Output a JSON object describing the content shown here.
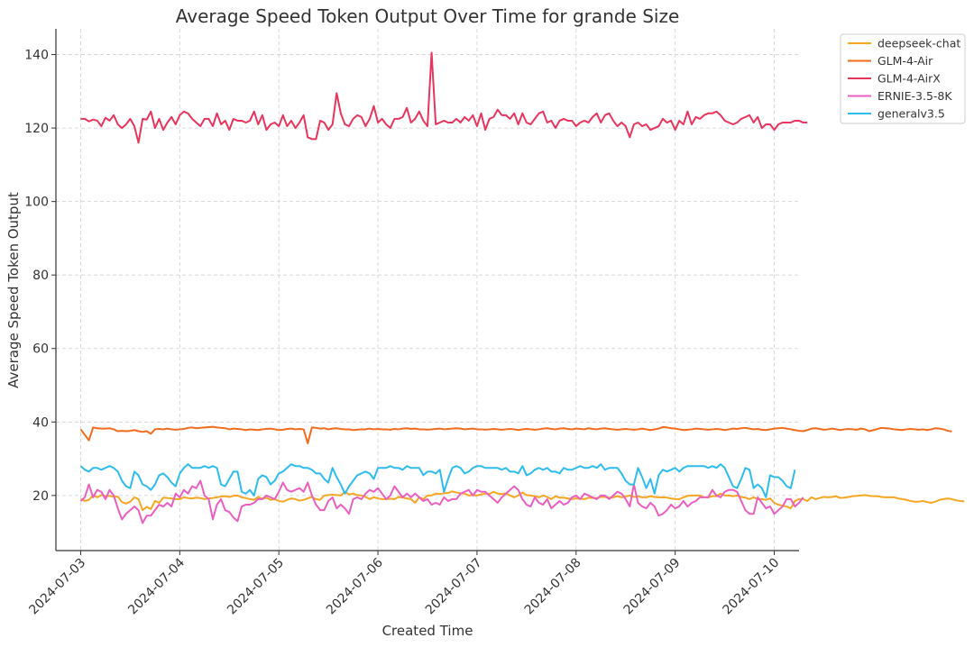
{
  "chart_data": {
    "type": "line",
    "title": "Average Speed Token Output Over Time for grande Size",
    "xlabel": "Created Time",
    "ylabel": "Average Speed Token Output",
    "xlim": [
      "2024-07-02T18:00",
      "2024-07-10T06:00"
    ],
    "ylim": [
      5,
      147
    ],
    "x_ticks": [
      "2024-07-03",
      "2024-07-04",
      "2024-07-05",
      "2024-07-06",
      "2024-07-07",
      "2024-07-08",
      "2024-07-09",
      "2024-07-10"
    ],
    "y_ticks": [
      20,
      40,
      60,
      80,
      100,
      120,
      140
    ],
    "grid": true,
    "legend_position": "outside top-right",
    "start_time": "2024-07-03T00:00",
    "step_hours": 1,
    "series": [
      {
        "name": "deepseek-chat",
        "color": "#f5a623",
        "values": [
          19.0,
          18.5,
          18.8,
          20.0,
          19.5,
          20.1,
          19.8,
          19.9,
          19.6,
          19.7,
          18.2,
          17.8,
          18.3,
          19.5,
          19.0,
          16.0,
          16.9,
          16.3,
          18.5,
          18.0,
          19.4,
          19.3,
          19.2,
          19.0,
          19.0,
          19.5,
          19.3,
          19.2,
          19.4,
          19.3,
          19.0,
          19.2,
          19.3,
          19.5,
          19.7,
          19.8,
          19.6,
          19.9,
          20.0,
          19.5,
          19.3,
          19.0,
          18.8,
          19.6,
          19.1,
          19.4,
          18.8,
          19.0,
          18.5,
          18.3,
          18.8,
          19.2,
          19.0,
          18.6,
          18.8,
          19.2,
          19.6,
          19.0,
          18.8,
          20.0,
          20.1,
          20.2,
          20.1,
          20.0,
          21.0,
          20.3,
          20.5,
          20.1,
          20.0,
          19.6,
          19.0,
          19.5,
          19.2,
          19.0,
          19.0,
          19.1,
          19.0,
          19.6,
          19.4,
          19.2,
          19.0,
          18.0,
          19.5,
          19.0,
          20.0,
          20.0,
          20.5,
          20.4,
          20.6,
          20.7,
          21.1,
          20.8,
          20.6,
          20.5,
          20.0,
          20.1,
          20.0,
          20.3,
          20.5,
          20.4,
          21.0,
          20.5,
          20.4,
          20.6,
          20.0,
          19.5,
          20.0,
          20.8,
          20.1,
          20.0,
          19.8,
          19.5,
          20.0,
          19.6,
          19.0,
          19.8,
          19.4,
          19.4,
          19.2,
          19.0,
          19.2,
          19.1,
          19.0,
          19.4,
          19.3,
          19.3,
          19.6,
          19.6,
          19.4,
          19.5,
          19.8,
          19.5,
          19.7,
          20.0,
          19.6,
          19.8,
          19.5,
          19.5,
          19.8,
          19.6,
          19.5,
          19.5,
          19.4,
          19.2,
          19.0,
          19.0,
          19.5,
          19.9,
          20.0,
          20.0,
          20.0,
          19.5,
          19.5,
          19.8,
          19.8,
          20.5,
          20.0,
          20.0,
          19.8,
          20.0,
          19.6,
          19.4,
          19.0,
          19.5,
          19.0,
          19.0,
          18.8,
          19.2,
          18.0,
          17.5,
          17.2,
          17.0,
          16.5,
          18.5,
          19.0,
          19.0,
          18.5,
          19.5,
          19.0,
          19.3,
          19.6,
          19.5,
          19.6,
          19.8,
          19.3,
          19.4,
          19.6,
          19.8,
          19.9,
          20.0,
          20.1,
          19.9,
          19.8,
          19.8,
          19.6,
          19.5,
          19.5,
          19.5,
          19.2,
          19.0,
          18.8,
          18.5,
          18.3,
          18.3,
          18.5,
          18.2,
          18.0,
          18.3,
          18.8,
          19.0,
          19.2,
          19.0,
          18.7,
          18.5,
          18.4
        ]
      },
      {
        "name": "GLM-4-Air",
        "color": "#f26b1d",
        "values": [
          38.0,
          36.5,
          35.0,
          38.5,
          38.3,
          38.2,
          38.2,
          38.3,
          38.0,
          37.5,
          37.6,
          37.5,
          37.6,
          37.8,
          37.5,
          37.3,
          37.5,
          36.8,
          38.0,
          38.1,
          38.0,
          38.2,
          38.0,
          37.9,
          38.0,
          38.1,
          38.4,
          38.5,
          38.3,
          38.4,
          38.5,
          38.6,
          38.7,
          38.5,
          38.4,
          38.3,
          38.0,
          38.2,
          38.1,
          38.0,
          37.8,
          38.0,
          37.9,
          37.8,
          38.0,
          38.1,
          38.2,
          38.0,
          37.8,
          37.9,
          38.1,
          38.2,
          38.0,
          38.1,
          38.0,
          34.2,
          38.5,
          38.4,
          38.2,
          38.3,
          38.0,
          38.2,
          38.3,
          38.1,
          38.0,
          38.0,
          37.8,
          37.9,
          38.0,
          38.0,
          38.2,
          38.0,
          38.1,
          38.0,
          38.0,
          37.9,
          38.1,
          38.0,
          38.2,
          38.3,
          38.1,
          38.2,
          38.0,
          38.0,
          37.9,
          38.0,
          38.1,
          38.2,
          38.0,
          38.1,
          38.2,
          38.3,
          38.2,
          38.0,
          38.1,
          38.2,
          38.0,
          38.0,
          37.9,
          38.0,
          38.1,
          38.0,
          37.9,
          38.0,
          38.1,
          38.0,
          37.8,
          38.0,
          38.1,
          38.0,
          37.9,
          38.0,
          38.2,
          38.3,
          38.1,
          38.0,
          38.2,
          38.3,
          38.1,
          38.0,
          38.2,
          38.1,
          38.0,
          38.3,
          38.1,
          38.0,
          38.2,
          38.3,
          38.1,
          38.0,
          37.9,
          38.0,
          38.1,
          38.0,
          37.9,
          38.0,
          38.2,
          38.0,
          37.8,
          38.0,
          38.2,
          38.6,
          38.5,
          38.3,
          38.2,
          38.0,
          37.8,
          37.9,
          38.0,
          38.2,
          38.1,
          38.0,
          37.9,
          38.0,
          38.1,
          38.0,
          37.8,
          38.0,
          38.2,
          38.1,
          38.3,
          38.4,
          38.2,
          38.0,
          38.1,
          37.9,
          37.8,
          38.0,
          38.2,
          38.3,
          38.4,
          38.2,
          38.0,
          37.8,
          37.6,
          37.5,
          37.8,
          38.2,
          38.3,
          38.1,
          37.9,
          38.0,
          38.2,
          38.0,
          37.8,
          38.0,
          38.1,
          38.0,
          37.9,
          38.2,
          38.0,
          37.5,
          37.8,
          38.1,
          38.4,
          38.3,
          38.2,
          38.0,
          37.9,
          37.8,
          38.0,
          38.1,
          38.0,
          37.9,
          38.0,
          37.8,
          38.0,
          38.3,
          38.2,
          38.0,
          37.6,
          37.4
        ]
      },
      {
        "name": "GLM-4-AirX",
        "color": "#e8355e",
        "values": [
          122.5,
          122.5,
          121.8,
          122.3,
          122.0,
          120.5,
          122.8,
          122.0,
          123.5,
          121.0,
          120.0,
          121.0,
          122.5,
          120.5,
          116.0,
          122.5,
          122.3,
          124.5,
          120.0,
          122.5,
          119.5,
          121.5,
          123.0,
          121.0,
          123.5,
          124.5,
          124.0,
          122.5,
          121.5,
          120.5,
          122.5,
          122.5,
          120.5,
          124.0,
          121.0,
          122.0,
          119.5,
          122.5,
          122.0,
          122.0,
          121.5,
          122.0,
          124.5,
          121.0,
          123.5,
          119.5,
          121.0,
          121.5,
          120.5,
          123.5,
          120.5,
          122.0,
          120.0,
          121.5,
          123.5,
          117.5,
          117.0,
          117.0,
          122.0,
          121.5,
          119.5,
          121.0,
          129.5,
          124.0,
          121.0,
          120.5,
          122.5,
          123.5,
          123.0,
          120.5,
          122.5,
          126.0,
          121.5,
          122.5,
          121.0,
          120.0,
          122.5,
          122.5,
          123.0,
          125.5,
          121.5,
          122.5,
          124.5,
          122.0,
          120.5,
          140.5,
          121.0,
          121.5,
          122.0,
          121.5,
          121.5,
          122.5,
          121.5,
          123.0,
          122.0,
          123.5,
          120.5,
          124.0,
          119.5,
          122.5,
          123.0,
          125.0,
          123.5,
          123.5,
          122.5,
          124.0,
          121.0,
          124.0,
          121.5,
          121.0,
          122.5,
          124.0,
          124.5,
          121.5,
          122.0,
          120.0,
          122.0,
          122.5,
          122.0,
          122.0,
          120.5,
          121.5,
          122.0,
          121.5,
          123.0,
          124.0,
          121.5,
          123.5,
          124.0,
          122.0,
          120.5,
          121.5,
          120.5,
          117.5,
          121.0,
          121.5,
          120.5,
          121.0,
          119.5,
          120.0,
          120.5,
          122.5,
          121.5,
          122.0,
          119.5,
          122.0,
          121.0,
          124.5,
          121.0,
          123.0,
          122.5,
          123.5,
          124.0,
          124.0,
          124.5,
          123.5,
          122.0,
          121.5,
          121.0,
          121.5,
          122.5,
          123.0,
          123.5,
          121.5,
          123.0,
          120.0,
          121.0,
          121.0,
          119.5,
          121.0,
          121.5,
          121.5,
          121.5,
          122.0,
          122.0,
          121.5,
          121.5
        ]
      },
      {
        "name": "ERNIE-3.5-8K",
        "color": "#ea5fc0",
        "values": [
          18.5,
          19.5,
          23.0,
          19.5,
          21.5,
          21.0,
          19.0,
          21.5,
          20.0,
          16.5,
          13.5,
          15.0,
          16.0,
          17.0,
          16.0,
          12.5,
          14.5,
          14.5,
          16.0,
          17.5,
          17.0,
          18.0,
          17.0,
          20.5,
          19.5,
          21.5,
          20.5,
          22.5,
          22.0,
          24.0,
          20.0,
          19.0,
          13.5,
          17.5,
          19.0,
          16.0,
          15.5,
          14.0,
          13.0,
          17.0,
          17.5,
          17.5,
          18.0,
          19.0,
          19.0,
          20.0,
          19.5,
          19.0,
          21.0,
          23.5,
          21.5,
          21.0,
          21.5,
          22.0,
          21.0,
          23.5,
          20.0,
          17.5,
          16.0,
          16.0,
          18.5,
          19.5,
          16.5,
          17.5,
          16.5,
          15.0,
          19.0,
          19.5,
          19.0,
          20.5,
          21.5,
          21.0,
          22.0,
          20.5,
          19.0,
          20.0,
          22.5,
          21.0,
          19.5,
          20.5,
          19.5,
          20.5,
          19.5,
          18.5,
          19.0,
          17.5,
          18.0,
          17.5,
          19.5,
          18.5,
          19.0,
          19.0,
          20.5,
          21.0,
          21.5,
          20.0,
          21.5,
          21.0,
          21.0,
          20.0,
          19.0,
          18.0,
          19.5,
          20.5,
          21.5,
          22.5,
          21.5,
          19.0,
          17.5,
          17.0,
          19.5,
          18.0,
          17.5,
          19.0,
          16.5,
          17.5,
          18.5,
          17.5,
          18.0,
          19.5,
          20.0,
          19.0,
          20.5,
          20.0,
          19.5,
          19.0,
          20.0,
          20.0,
          19.0,
          20.0,
          21.0,
          20.5,
          19.0,
          17.0,
          23.0,
          18.0,
          17.0,
          16.5,
          18.0,
          17.0,
          14.5,
          15.0,
          16.0,
          17.5,
          16.5,
          17.0,
          18.5,
          17.0,
          18.0,
          18.5,
          19.5,
          19.5,
          19.5,
          21.5,
          20.0,
          19.5,
          21.0,
          21.5,
          21.5,
          21.0,
          18.5,
          16.0,
          15.0,
          15.0,
          19.5,
          18.0,
          16.5,
          17.0,
          15.0,
          16.0,
          17.0,
          19.0,
          19.0,
          17.0,
          18.0,
          19.5
        ]
      },
      {
        "name": "generalv3.5",
        "color": "#2ebcee",
        "values": [
          28.0,
          27.0,
          26.5,
          27.5,
          27.5,
          27.0,
          27.5,
          28.0,
          27.5,
          26.5,
          24.0,
          22.5,
          22.0,
          26.5,
          25.5,
          23.0,
          22.5,
          21.5,
          23.0,
          25.5,
          26.0,
          25.0,
          23.5,
          22.5,
          26.0,
          27.5,
          28.5,
          27.5,
          27.5,
          27.5,
          28.0,
          27.5,
          28.0,
          27.5,
          23.0,
          22.5,
          24.5,
          26.5,
          26.5,
          21.0,
          20.5,
          21.5,
          20.0,
          24.5,
          25.5,
          25.0,
          23.0,
          24.0,
          26.0,
          26.5,
          27.5,
          28.5,
          28.0,
          28.0,
          27.5,
          27.5,
          27.0,
          26.0,
          26.0,
          24.5,
          23.5,
          27.5,
          25.0,
          23.0,
          20.5,
          22.5,
          24.0,
          25.5,
          26.0,
          26.5,
          26.0,
          24.5,
          27.5,
          27.5,
          27.5,
          28.0,
          27.5,
          27.5,
          27.0,
          28.0,
          27.5,
          27.5,
          27.5,
          25.5,
          26.5,
          26.5,
          26.0,
          27.0,
          21.0,
          24.5,
          27.5,
          28.0,
          27.5,
          26.0,
          26.5,
          27.5,
          28.0,
          28.0,
          27.5,
          27.5,
          27.5,
          27.5,
          27.0,
          27.5,
          26.5,
          26.5,
          26.0,
          28.0,
          25.5,
          26.0,
          27.0,
          27.5,
          27.0,
          27.5,
          26.5,
          26.5,
          26.0,
          27.5,
          27.0,
          27.0,
          27.5,
          28.0,
          27.5,
          27.5,
          28.0,
          27.5,
          28.5,
          27.0,
          27.5,
          27.5,
          27.5,
          26.0,
          24.0,
          23.0,
          23.0,
          27.5,
          25.0,
          22.0,
          24.5,
          20.5,
          25.5,
          27.0,
          26.5,
          27.0,
          27.5,
          26.5,
          27.5,
          28.0,
          28.0,
          28.0,
          28.0,
          28.0,
          27.5,
          28.0,
          27.5,
          28.5,
          27.5,
          25.0,
          22.5,
          22.0,
          24.5,
          27.5,
          27.0,
          22.0,
          23.0,
          22.0,
          19.5,
          25.5,
          25.0,
          25.0,
          24.0,
          22.5,
          22.0,
          27.0
        ]
      }
    ]
  }
}
